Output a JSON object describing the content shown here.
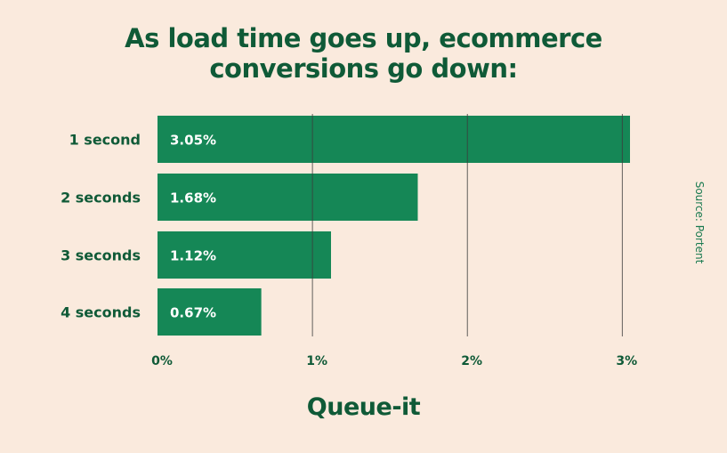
{
  "title": {
    "line1": "As load time goes up, ecommerce",
    "line2": "conversions go down:"
  },
  "source": "Source: Portent",
  "logo": "Queue-it",
  "colors": {
    "background": "#faeadd",
    "bar": "#158756",
    "text_dark": "#0f5a37",
    "bar_label": "#ffffff",
    "gridline": "#3c3c3c"
  },
  "chart_data": {
    "type": "bar",
    "orientation": "horizontal",
    "categories": [
      "1 second",
      "2 seconds",
      "3 seconds",
      "4 seconds"
    ],
    "values": [
      3.05,
      1.68,
      1.12,
      0.67
    ],
    "value_labels": [
      "3.05%",
      "1.68%",
      "1.12%",
      "0.67%"
    ],
    "xlim": [
      0,
      3.05
    ],
    "xticks": [
      0,
      1,
      2,
      3
    ],
    "xtick_labels": [
      "0%",
      "1%",
      "2%",
      "3%"
    ],
    "grid": true
  }
}
